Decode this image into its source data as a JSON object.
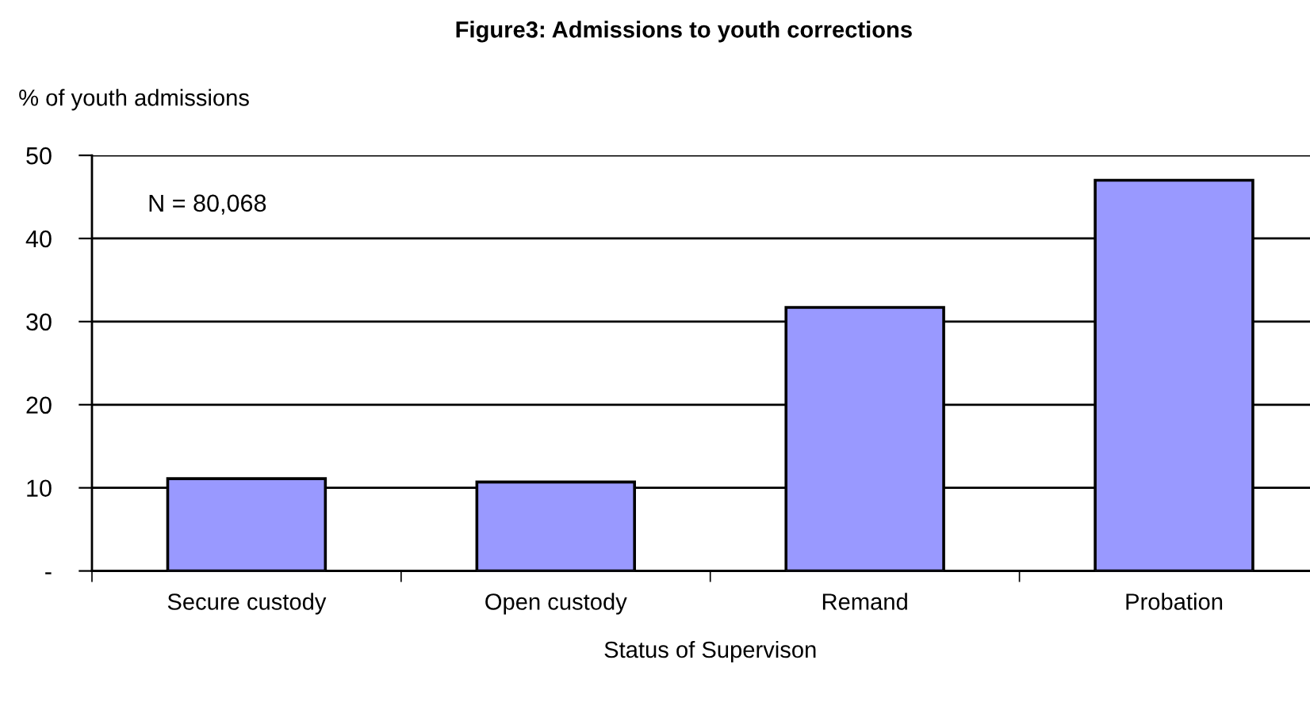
{
  "chart_data": {
    "type": "bar",
    "title": "Figure3: Admissions to youth corrections",
    "ylabel": "% of youth admissions",
    "xlabel": "Status of Supervison",
    "annotations": [
      "N = 80,068"
    ],
    "categories": [
      "Secure custody",
      "Open custody",
      "Remand",
      "Probation"
    ],
    "values": [
      11.1,
      10.7,
      31.7,
      47.0
    ],
    "color": "#9999ff",
    "ylim": [
      0,
      50
    ],
    "yticks": [
      {
        "value": 0,
        "label": "-"
      },
      10,
      20,
      30,
      40,
      50
    ],
    "grid": "y",
    "legend": false
  }
}
